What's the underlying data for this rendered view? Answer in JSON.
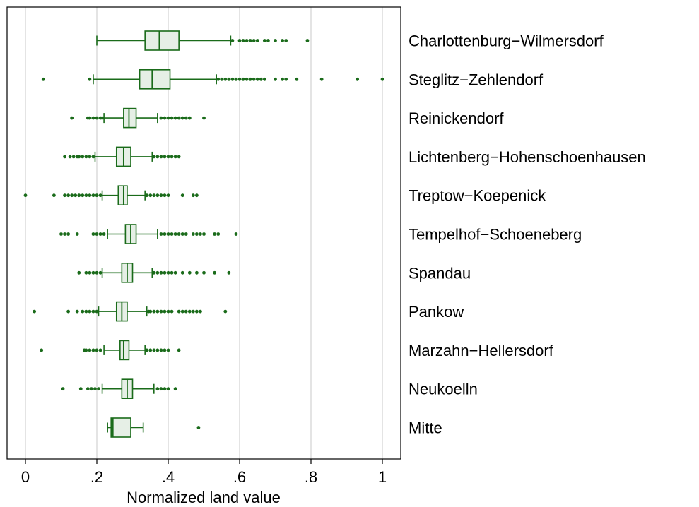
{
  "chart_data": {
    "type": "boxplot",
    "orientation": "horizontal",
    "xlabel": "Normalized land value",
    "xlim": [
      -0.05,
      1.05
    ],
    "xticks": [
      0,
      0.2,
      0.4,
      0.6,
      0.8,
      1
    ],
    "xtick_labels": [
      "0",
      ".2",
      ".4",
      ".6",
      ".8",
      "1"
    ],
    "grid": true,
    "colors": {
      "box_fill": "#e6efe6",
      "stroke": "#1a6b1a",
      "points": "#1a6b1a",
      "grid": "#d9d9d9"
    },
    "categories": [
      {
        "name": "Charlottenburg−Wilmersdorf",
        "whisker_low": 0.2,
        "q1": 0.335,
        "median": 0.375,
        "q3": 0.43,
        "whisker_high": 0.575,
        "outliers": [
          0.58,
          0.6,
          0.61,
          0.62,
          0.63,
          0.64,
          0.65,
          0.67,
          0.68,
          0.7,
          0.72,
          0.73,
          0.79
        ]
      },
      {
        "name": "Steglitz−Zehlendorf",
        "whisker_low": 0.19,
        "q1": 0.32,
        "median": 0.355,
        "q3": 0.405,
        "whisker_high": 0.535,
        "outliers": [
          0.05,
          0.18,
          0.54,
          0.55,
          0.56,
          0.57,
          0.58,
          0.59,
          0.6,
          0.61,
          0.62,
          0.63,
          0.64,
          0.65,
          0.66,
          0.67,
          0.7,
          0.72,
          0.73,
          0.76,
          0.83,
          0.93,
          1.0
        ]
      },
      {
        "name": "Reinickendorf",
        "whisker_low": 0.22,
        "q1": 0.275,
        "median": 0.29,
        "q3": 0.31,
        "whisker_high": 0.37,
        "outliers": [
          0.13,
          0.175,
          0.18,
          0.19,
          0.2,
          0.21,
          0.215,
          0.38,
          0.39,
          0.4,
          0.41,
          0.42,
          0.43,
          0.44,
          0.45,
          0.46,
          0.5
        ]
      },
      {
        "name": "Lichtenberg−Hohenschoenhausen",
        "whisker_low": 0.195,
        "q1": 0.255,
        "median": 0.275,
        "q3": 0.295,
        "whisker_high": 0.355,
        "outliers": [
          0.11,
          0.125,
          0.135,
          0.145,
          0.15,
          0.16,
          0.17,
          0.18,
          0.19,
          0.36,
          0.37,
          0.38,
          0.39,
          0.4,
          0.41,
          0.42,
          0.43
        ]
      },
      {
        "name": "Treptow−Koepenick",
        "whisker_low": 0.215,
        "q1": 0.26,
        "median": 0.275,
        "q3": 0.285,
        "whisker_high": 0.335,
        "outliers": [
          0.0,
          0.08,
          0.11,
          0.12,
          0.13,
          0.14,
          0.15,
          0.16,
          0.17,
          0.18,
          0.19,
          0.2,
          0.21,
          0.34,
          0.35,
          0.36,
          0.37,
          0.38,
          0.39,
          0.4,
          0.44,
          0.47,
          0.48
        ]
      },
      {
        "name": "Tempelhof−Schoeneberg",
        "whisker_low": 0.23,
        "q1": 0.28,
        "median": 0.295,
        "q3": 0.31,
        "whisker_high": 0.37,
        "outliers": [
          0.1,
          0.11,
          0.12,
          0.145,
          0.19,
          0.2,
          0.21,
          0.22,
          0.38,
          0.39,
          0.4,
          0.41,
          0.42,
          0.43,
          0.44,
          0.45,
          0.47,
          0.48,
          0.49,
          0.5,
          0.53,
          0.54,
          0.59
        ]
      },
      {
        "name": "Spandau",
        "whisker_low": 0.215,
        "q1": 0.27,
        "median": 0.285,
        "q3": 0.3,
        "whisker_high": 0.355,
        "outliers": [
          0.15,
          0.17,
          0.18,
          0.19,
          0.2,
          0.21,
          0.36,
          0.37,
          0.38,
          0.39,
          0.4,
          0.41,
          0.42,
          0.44,
          0.46,
          0.48,
          0.5,
          0.53,
          0.57
        ]
      },
      {
        "name": "Pankow",
        "whisker_low": 0.205,
        "q1": 0.255,
        "median": 0.27,
        "q3": 0.285,
        "whisker_high": 0.34,
        "outliers": [
          0.025,
          0.12,
          0.145,
          0.16,
          0.17,
          0.18,
          0.19,
          0.2,
          0.345,
          0.35,
          0.36,
          0.37,
          0.38,
          0.39,
          0.4,
          0.41,
          0.43,
          0.44,
          0.45,
          0.46,
          0.47,
          0.48,
          0.49,
          0.56
        ]
      },
      {
        "name": "Marzahn−Hellersdorf",
        "whisker_low": 0.22,
        "q1": 0.265,
        "median": 0.275,
        "q3": 0.29,
        "whisker_high": 0.335,
        "outliers": [
          0.045,
          0.165,
          0.17,
          0.18,
          0.19,
          0.2,
          0.21,
          0.34,
          0.35,
          0.36,
          0.37,
          0.38,
          0.39,
          0.4,
          0.43
        ]
      },
      {
        "name": "Neukoelln",
        "whisker_low": 0.215,
        "q1": 0.27,
        "median": 0.285,
        "q3": 0.3,
        "whisker_high": 0.36,
        "outliers": [
          0.105,
          0.155,
          0.175,
          0.185,
          0.195,
          0.205,
          0.37,
          0.38,
          0.39,
          0.4,
          0.42
        ]
      },
      {
        "name": "Mitte",
        "whisker_low": 0.23,
        "q1": 0.24,
        "median": 0.245,
        "q3": 0.295,
        "whisker_high": 0.33,
        "outliers": [
          0.485
        ]
      }
    ]
  }
}
